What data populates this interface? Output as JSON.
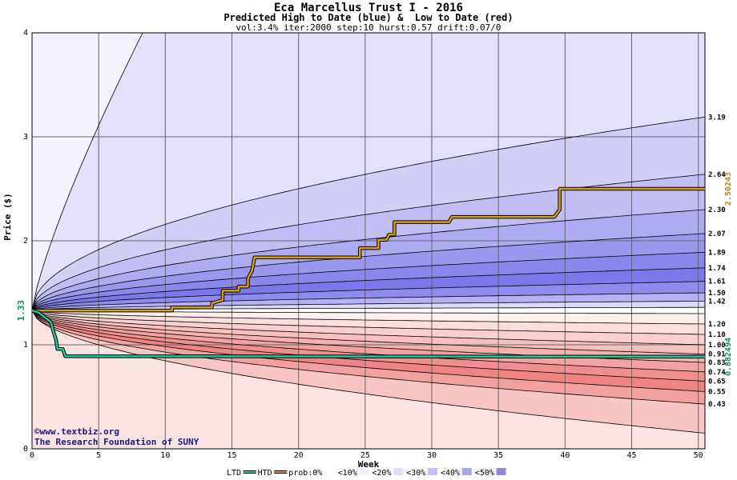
{
  "chart_data": {
    "type": "area",
    "title": "Eca Marcellus Trust I - 2016",
    "subtitle": "Predicted High to Date (blue) &  Low to Date (red)",
    "params": "vol:3.4% iter:2000 step:10 hurst:0.57 drift:0.07/0",
    "xlabel": "Week",
    "ylabel": "Price ($)",
    "xlim": [
      0,
      50.5
    ],
    "ylim": [
      0,
      4
    ],
    "x_ticks": [
      0,
      5,
      10,
      15,
      20,
      25,
      30,
      35,
      40,
      45,
      50
    ],
    "y_ticks": [
      0,
      1,
      2,
      3,
      4
    ],
    "grid": true,
    "start_price_label": "1.33",
    "start_price": 1.33,
    "high_percentile_curves": [
      {
        "label": "3.19",
        "end": 3.19
      },
      {
        "label": "2.64",
        "end": 2.64
      },
      {
        "label": "2.30",
        "end": 2.3
      },
      {
        "label": "2.07",
        "end": 2.07
      },
      {
        "label": "1.89",
        "end": 1.89
      },
      {
        "label": "1.74",
        "end": 1.74
      },
      {
        "label": "1.61",
        "end": 1.61
      },
      {
        "label": "1.50",
        "end": 1.5
      },
      {
        "label": "1.42",
        "end": 1.42
      }
    ],
    "low_percentile_curves": [
      {
        "label": "1.20",
        "end": 1.2
      },
      {
        "label": "1.10",
        "end": 1.1
      },
      {
        "label": "1.00",
        "end": 1.0
      },
      {
        "label": "0.91",
        "end": 0.91
      },
      {
        "label": "0.83",
        "end": 0.83
      },
      {
        "label": "0.74",
        "end": 0.74
      },
      {
        "label": "0.65",
        "end": 0.65
      },
      {
        "label": "0.55",
        "end": 0.55
      },
      {
        "label": "0.43",
        "end": 0.43
      }
    ],
    "outer_high_curve_note": "reaches 4 at week 8.3",
    "outer_low_end": 0.15,
    "htd_series": {
      "name": "HTD",
      "end_label": "2.50243",
      "color": "#d4a017",
      "points": [
        [
          0,
          1.33
        ],
        [
          10.5,
          1.33
        ],
        [
          10.5,
          1.36
        ],
        [
          13.5,
          1.36
        ],
        [
          13.5,
          1.4
        ],
        [
          14.3,
          1.43
        ],
        [
          14.3,
          1.52
        ],
        [
          15.5,
          1.52
        ],
        [
          15.5,
          1.56
        ],
        [
          16.2,
          1.56
        ],
        [
          16.2,
          1.64
        ],
        [
          16.5,
          1.71
        ],
        [
          16.7,
          1.84
        ],
        [
          24.6,
          1.84
        ],
        [
          24.6,
          1.93
        ],
        [
          26.0,
          1.93
        ],
        [
          26.0,
          2.01
        ],
        [
          26.6,
          2.01
        ],
        [
          26.8,
          2.06
        ],
        [
          27.2,
          2.06
        ],
        [
          27.2,
          2.18
        ],
        [
          31.3,
          2.18
        ],
        [
          31.5,
          2.23
        ],
        [
          39.2,
          2.23
        ],
        [
          39.6,
          2.3
        ],
        [
          39.6,
          2.5
        ],
        [
          50.5,
          2.5
        ]
      ]
    },
    "ltd_series": {
      "name": "LTD",
      "end_label": "0.882494",
      "color": "#22c79a",
      "points": [
        [
          0,
          1.33
        ],
        [
          0.5,
          1.31
        ],
        [
          1.0,
          1.26
        ],
        [
          1.4,
          1.22
        ],
        [
          1.6,
          1.13
        ],
        [
          1.8,
          1.05
        ],
        [
          1.9,
          0.96
        ],
        [
          2.3,
          0.96
        ],
        [
          2.5,
          0.89
        ],
        [
          50.5,
          0.885
        ]
      ]
    },
    "legend": [
      {
        "label": "LTD",
        "color": "#22c79a",
        "kind": "line"
      },
      {
        "label": "HTD",
        "color": "#d4a017",
        "kind": "line"
      },
      {
        "label": "prob:0%",
        "color": "#ffffff",
        "kind": "swatch"
      },
      {
        "label": "<10%",
        "color": "#f3f1ff",
        "kind": "swatch"
      },
      {
        "label": "<20%",
        "color": "#e0dcf7",
        "kind": "swatch"
      },
      {
        "label": "<30%",
        "color": "#c7c1f3",
        "kind": "swatch"
      },
      {
        "label": "<40%",
        "color": "#a9a4ef",
        "kind": "swatch"
      },
      {
        "label": "<50%",
        "color": "#8a86eb",
        "kind": "swatch"
      }
    ],
    "legend_labels_shown": [
      "LTD",
      "HTD",
      "prob:0%",
      "<10%",
      "<20%",
      "<30%",
      "<40%",
      "<50%"
    ],
    "high_band_colors": [
      "#f4f2fe",
      "#e2e0fa",
      "#d2cff7",
      "#c0bdf4",
      "#aeabf2",
      "#9b97ef",
      "#8986ec",
      "#7c78ea",
      "#8f8bee",
      "#b5b2f4",
      "#dcdafa"
    ],
    "low_band_colors": [
      "#fdeeee",
      "#fbdede",
      "#f9cfcf",
      "#f7bfbf",
      "#f5b0b0",
      "#f3a1a1",
      "#f18f8f",
      "#f08383",
      "#f3a0a0",
      "#f8c5c5",
      "#fce3e3"
    ]
  },
  "watermark": {
    "line1": "©www.textbiz.org",
    "line2": "The Research Foundation of SUNY"
  }
}
